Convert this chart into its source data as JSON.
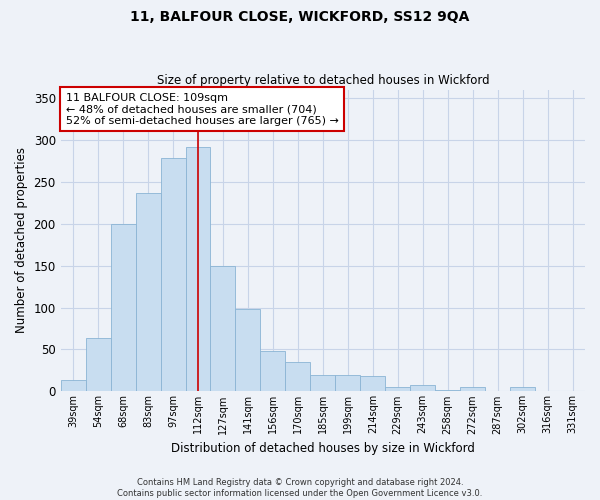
{
  "title": "11, BALFOUR CLOSE, WICKFORD, SS12 9QA",
  "subtitle": "Size of property relative to detached houses in Wickford",
  "xlabel": "Distribution of detached houses by size in Wickford",
  "ylabel": "Number of detached properties",
  "bin_labels": [
    "39sqm",
    "54sqm",
    "68sqm",
    "83sqm",
    "97sqm",
    "112sqm",
    "127sqm",
    "141sqm",
    "156sqm",
    "170sqm",
    "185sqm",
    "199sqm",
    "214sqm",
    "229sqm",
    "243sqm",
    "258sqm",
    "272sqm",
    "287sqm",
    "302sqm",
    "316sqm",
    "331sqm"
  ],
  "bar_heights": [
    13,
    64,
    200,
    237,
    278,
    291,
    150,
    98,
    48,
    35,
    19,
    20,
    18,
    5,
    8,
    2,
    5,
    0,
    5,
    0,
    0
  ],
  "bar_color": "#c8ddf0",
  "bar_edge_color": "#8ab4d4",
  "vline_x_index": 5,
  "vline_color": "#cc0000",
  "ylim": [
    0,
    360
  ],
  "yticks": [
    0,
    50,
    100,
    150,
    200,
    250,
    300,
    350
  ],
  "annotation_title": "11 BALFOUR CLOSE: 109sqm",
  "annotation_line1": "← 48% of detached houses are smaller (704)",
  "annotation_line2": "52% of semi-detached houses are larger (765) →",
  "footer_line1": "Contains HM Land Registry data © Crown copyright and database right 2024.",
  "footer_line2": "Contains public sector information licensed under the Open Government Licence v3.0.",
  "background_color": "#eef2f8",
  "plot_bg_color": "#eef2f8",
  "grid_color": "#c8d4e8"
}
